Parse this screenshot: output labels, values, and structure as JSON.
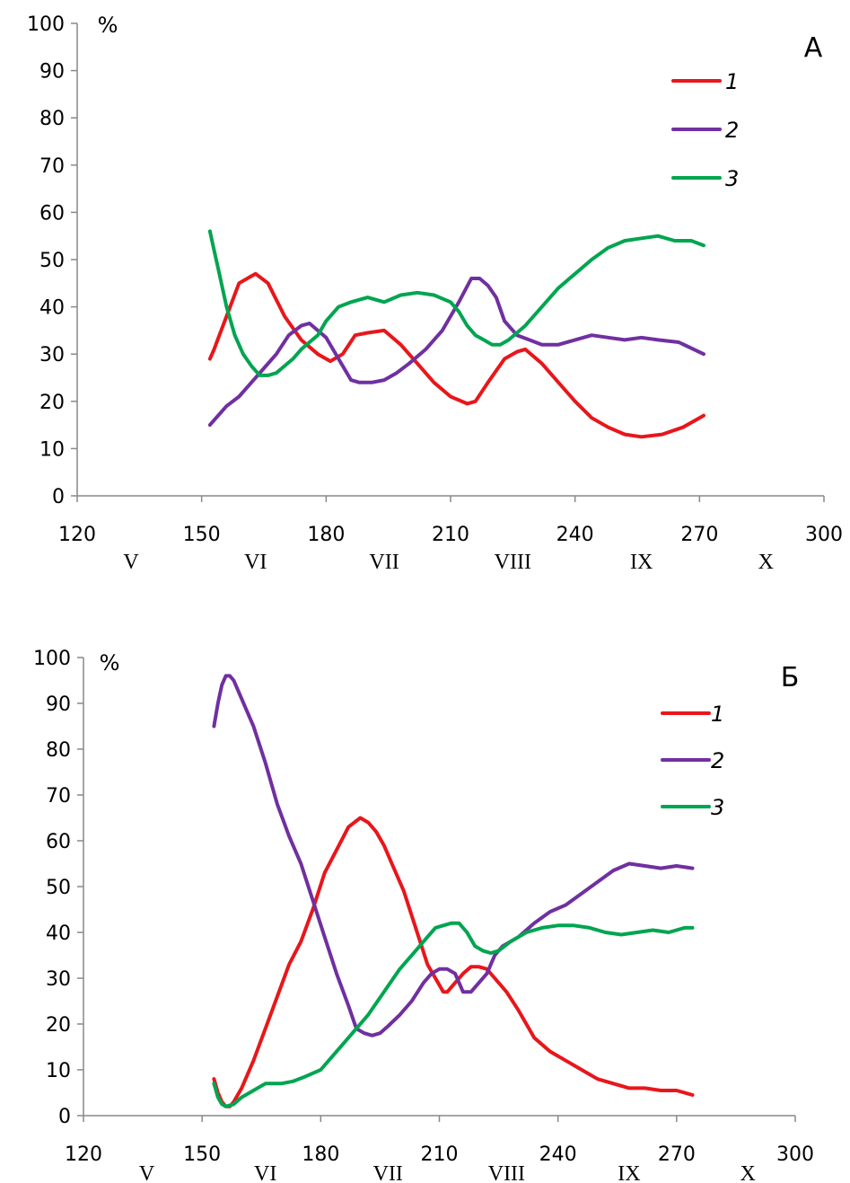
{
  "chart_data": [
    {
      "type": "line",
      "panel_label": "А",
      "unit_label": "%",
      "xlim": [
        120,
        300
      ],
      "ylim": [
        0,
        100
      ],
      "x_ticks": [
        "120",
        "150",
        "180",
        "210",
        "240",
        "270",
        "300"
      ],
      "y_ticks": [
        "0",
        "10",
        "20",
        "30",
        "40",
        "50",
        "60",
        "70",
        "80",
        "90",
        "100"
      ],
      "month_labels": [
        {
          "label": "V",
          "x": 133
        },
        {
          "label": "VI",
          "x": 163
        },
        {
          "label": "VII",
          "x": 194
        },
        {
          "label": "VIII",
          "x": 225
        },
        {
          "label": "IX",
          "x": 256
        },
        {
          "label": "X",
          "x": 286
        }
      ],
      "legend_position": "top-right",
      "grid": false,
      "series": [
        {
          "name": "1",
          "color": "#e8161b",
          "x": [
            152,
            153,
            156,
            159,
            162,
            163,
            166,
            170,
            174,
            178,
            181,
            184,
            187,
            190,
            194,
            198,
            202,
            206,
            210,
            214,
            216,
            219,
            223,
            226,
            228,
            232,
            236,
            240,
            244,
            248,
            252,
            256,
            261,
            266,
            271
          ],
          "y": [
            29,
            31,
            38,
            45,
            46.5,
            47,
            45,
            38,
            33,
            30,
            28.5,
            30,
            34,
            34.5,
            35,
            32,
            28,
            24,
            21,
            19.5,
            20,
            24,
            29,
            30.5,
            31,
            28,
            24,
            20,
            16.5,
            14.5,
            13,
            12.5,
            13,
            14.5,
            17
          ]
        },
        {
          "name": "2",
          "color": "#7030a0",
          "x": [
            152,
            153,
            156,
            159,
            162,
            165,
            168,
            171,
            174,
            176,
            178,
            180,
            183,
            186,
            188,
            191,
            194,
            197,
            200,
            204,
            208,
            212,
            215,
            217,
            219,
            221,
            223,
            226,
            229,
            232,
            236,
            240,
            244,
            248,
            252,
            256,
            260,
            265,
            271
          ],
          "y": [
            15,
            16,
            19,
            21,
            24,
            27,
            30,
            34,
            36,
            36.5,
            35,
            33.5,
            29,
            24.5,
            24,
            24,
            24.5,
            26,
            28,
            31,
            35,
            41,
            46,
            46,
            44.5,
            42,
            37,
            34,
            33,
            32,
            32,
            33,
            34,
            33.5,
            33,
            33.5,
            33,
            32.5,
            30
          ]
        },
        {
          "name": "3",
          "color": "#00a550",
          "x": [
            152,
            153,
            154,
            156,
            158,
            160,
            162,
            164,
            166,
            168,
            170,
            172,
            174,
            176,
            178,
            180,
            183,
            186,
            188,
            190,
            194,
            198,
            202,
            206,
            210,
            212,
            214,
            216,
            218,
            220,
            222,
            224,
            228,
            232,
            236,
            240,
            244,
            248,
            252,
            256,
            260,
            264,
            268,
            271
          ],
          "y": [
            56,
            52,
            48,
            40,
            34,
            30,
            27.5,
            25.5,
            25.5,
            26,
            27.5,
            29,
            31,
            32.5,
            34,
            37,
            40,
            41,
            41.5,
            42,
            41,
            42.5,
            43,
            42.5,
            41,
            39,
            36,
            34,
            33,
            32,
            32,
            33,
            36,
            40,
            44,
            47,
            50,
            52.5,
            54,
            54.5,
            55,
            54,
            54,
            53
          ]
        }
      ]
    },
    {
      "type": "line",
      "panel_label": "Б",
      "unit_label": "%",
      "xlim": [
        120,
        300
      ],
      "ylim": [
        0,
        100
      ],
      "x_ticks": [
        "120",
        "150",
        "180",
        "210",
        "240",
        "270",
        "300"
      ],
      "y_ticks": [
        "0",
        "10",
        "20",
        "30",
        "40",
        "50",
        "60",
        "70",
        "80",
        "90",
        "100"
      ],
      "month_labels": [
        {
          "label": "V",
          "x": 136
        },
        {
          "label": "VI",
          "x": 166
        },
        {
          "label": "VII",
          "x": 197
        },
        {
          "label": "VIII",
          "x": 227
        },
        {
          "label": "IX",
          "x": 258
        },
        {
          "label": "X",
          "x": 288
        }
      ],
      "legend_position": "top-right",
      "grid": false,
      "series": [
        {
          "name": "1",
          "color": "#e8161b",
          "x": [
            153,
            154,
            155,
            156,
            157,
            158,
            160,
            163,
            166,
            169,
            172,
            175,
            178,
            181,
            184,
            187,
            190,
            192,
            194,
            196,
            198,
            201,
            204,
            207,
            209,
            211,
            212,
            214,
            216,
            218,
            220,
            222,
            224,
            227,
            230,
            234,
            238,
            242,
            246,
            250,
            254,
            258,
            262,
            266,
            270,
            274
          ],
          "y": [
            8,
            5,
            3,
            2,
            2,
            3,
            6,
            12,
            19,
            26,
            33,
            38,
            45,
            53,
            58,
            63,
            65,
            64,
            62,
            59,
            55,
            49,
            41,
            33,
            30,
            27,
            27,
            29,
            31,
            32.5,
            32.5,
            32,
            30,
            27,
            23,
            17,
            14,
            12,
            10,
            8,
            7,
            6,
            6,
            5.5,
            5.5,
            4.5
          ]
        },
        {
          "name": "2",
          "color": "#7030a0",
          "x": [
            153,
            154,
            155,
            156,
            157,
            158,
            160,
            163,
            166,
            169,
            172,
            175,
            178,
            181,
            184,
            187,
            189,
            191,
            193,
            195,
            197,
            200,
            203,
            206,
            208,
            210,
            212,
            214,
            216,
            218,
            220,
            222,
            224,
            226,
            230,
            234,
            238,
            242,
            246,
            250,
            254,
            258,
            262,
            266,
            270,
            274
          ],
          "y": [
            85,
            90,
            94,
            96,
            96,
            95,
            91,
            85,
            77,
            68,
            61,
            55,
            47,
            39,
            31,
            24,
            19,
            18,
            17.5,
            18,
            19.5,
            22,
            25,
            29,
            31,
            32,
            32,
            31,
            27,
            27,
            29,
            31,
            35,
            37,
            39,
            42,
            44.5,
            46,
            48.5,
            51,
            53.5,
            55,
            54.5,
            54,
            54.5,
            54
          ]
        },
        {
          "name": "3",
          "color": "#00a550",
          "x": [
            153,
            154,
            155,
            156,
            158,
            160,
            163,
            166,
            168,
            170,
            173,
            176,
            180,
            184,
            188,
            192,
            196,
            200,
            204,
            207,
            209,
            211,
            213,
            215,
            217,
            219,
            221,
            223,
            225,
            228,
            232,
            236,
            240,
            244,
            248,
            252,
            256,
            260,
            264,
            268,
            272,
            274
          ],
          "y": [
            7,
            4,
            2.5,
            2,
            2.5,
            4,
            5.5,
            7,
            7,
            7,
            7.5,
            8.5,
            10,
            14,
            18,
            22,
            27,
            32,
            36,
            39,
            41,
            41.5,
            42,
            42,
            40,
            37,
            36,
            35.5,
            36,
            38,
            40,
            41,
            41.5,
            41.5,
            41,
            40,
            39.5,
            40,
            40.5,
            40,
            41,
            41
          ]
        }
      ]
    }
  ]
}
